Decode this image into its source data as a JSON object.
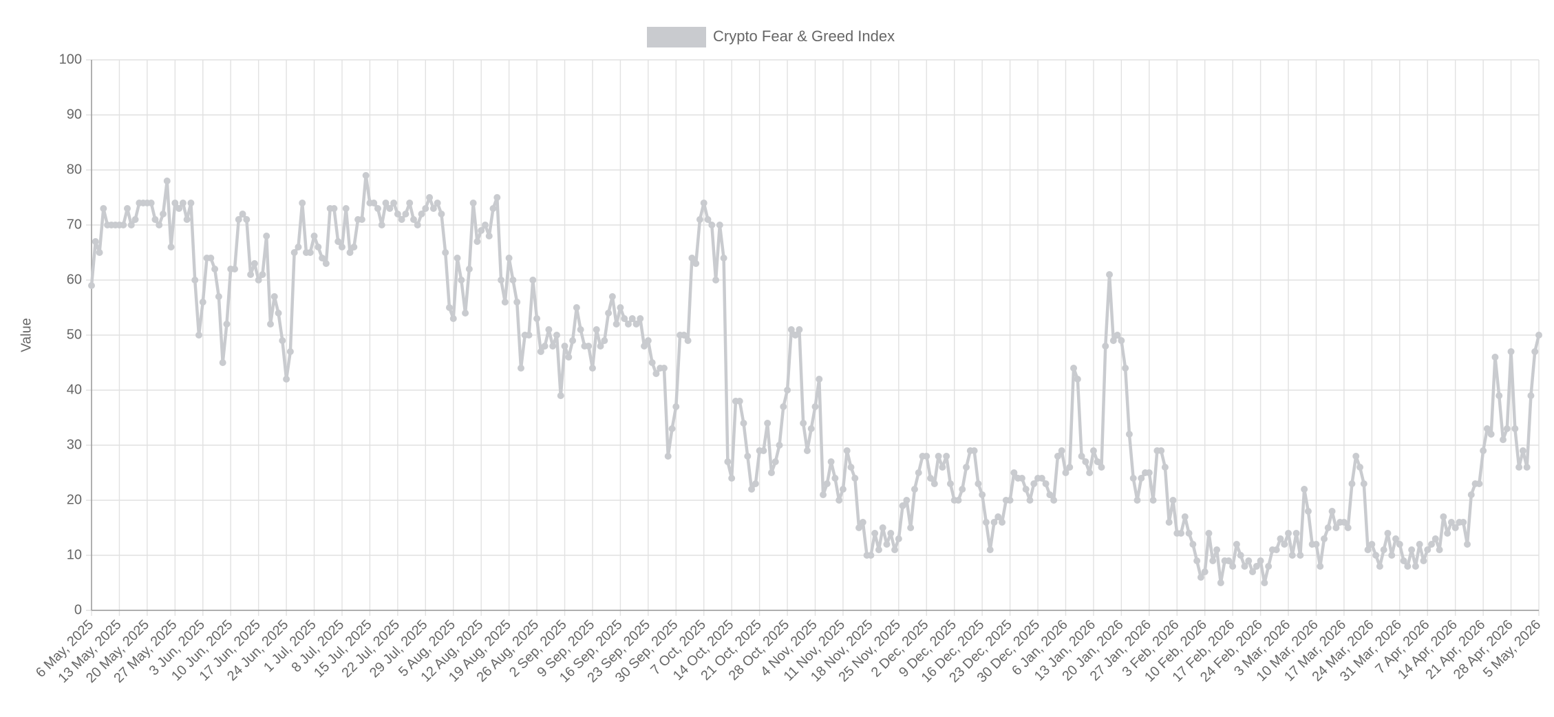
{
  "chart_data": {
    "type": "line",
    "y_label": "Value",
    "legend_position": "top",
    "grid": true,
    "ylim": [
      0,
      100
    ],
    "yticks": [
      0,
      10,
      20,
      30,
      40,
      50,
      60,
      70,
      80,
      90,
      100
    ],
    "categories": [
      "6 May, 2025",
      null,
      null,
      null,
      null,
      null,
      null,
      "13 May, 2025",
      null,
      null,
      null,
      null,
      null,
      null,
      "20 May, 2025",
      null,
      null,
      null,
      null,
      null,
      null,
      "27 May, 2025",
      null,
      null,
      null,
      null,
      null,
      null,
      "3 Jun, 2025",
      null,
      null,
      null,
      null,
      null,
      null,
      "10 Jun, 2025",
      null,
      null,
      null,
      null,
      null,
      null,
      "17 Jun, 2025",
      null,
      null,
      null,
      null,
      null,
      null,
      "24 Jun, 2025",
      null,
      null,
      null,
      null,
      null,
      null,
      "1 Jul, 2025",
      null,
      null,
      null,
      null,
      null,
      null,
      "8 Jul, 2025",
      null,
      null,
      null,
      null,
      null,
      null,
      "15 Jul, 2025",
      null,
      null,
      null,
      null,
      null,
      null,
      "22 Jul, 2025",
      null,
      null,
      null,
      null,
      null,
      null,
      "29 Jul, 2025",
      null,
      null,
      null,
      null,
      null,
      null,
      "5 Aug, 2025",
      null,
      null,
      null,
      null,
      null,
      null,
      "12 Aug, 2025",
      null,
      null,
      null,
      null,
      null,
      null,
      "19 Aug, 2025",
      null,
      null,
      null,
      null,
      null,
      null,
      "26 Aug, 2025",
      null,
      null,
      null,
      null,
      null,
      null,
      "2 Sep, 2025",
      null,
      null,
      null,
      null,
      null,
      null,
      "9 Sep, 2025",
      null,
      null,
      null,
      null,
      null,
      null,
      "16 Sep, 2025",
      null,
      null,
      null,
      null,
      null,
      null,
      "23 Sep, 2025",
      null,
      null,
      null,
      null,
      null,
      null,
      "30 Sep, 2025",
      null,
      null,
      null,
      null,
      null,
      null,
      "7 Oct, 2025",
      null,
      null,
      null,
      null,
      null,
      null,
      "14 Oct, 2025",
      null,
      null,
      null,
      null,
      null,
      null,
      "21 Oct, 2025",
      null,
      null,
      null,
      null,
      null,
      null,
      "28 Oct, 2025",
      null,
      null,
      null,
      null,
      null,
      null,
      "4 Nov, 2025",
      null,
      null,
      null,
      null,
      null,
      null,
      "11 Nov, 2025",
      null,
      null,
      null,
      null,
      null,
      null,
      "18 Nov, 2025",
      null,
      null,
      null,
      null,
      null,
      null,
      "25 Nov, 2025",
      null,
      null,
      null,
      null,
      null,
      null,
      "2 Dec, 2025",
      null,
      null,
      null,
      null,
      null,
      null,
      "9 Dec, 2025",
      null,
      null,
      null,
      null,
      null,
      null,
      "16 Dec, 2025",
      null,
      null,
      null,
      null,
      null,
      null,
      "23 Dec, 2025",
      null,
      null,
      null,
      null,
      null,
      null,
      "30 Dec, 2025",
      null,
      null,
      null,
      null,
      null,
      null,
      "6 Jan, 2026",
      null,
      null,
      null,
      null,
      null,
      null,
      "13 Jan, 2026",
      null,
      null,
      null,
      null,
      null,
      null,
      "20 Jan, 2026",
      null,
      null,
      null,
      null,
      null,
      null,
      "27 Jan, 2026",
      null,
      null,
      null,
      null,
      null,
      null,
      "3 Feb, 2026",
      null,
      null,
      null,
      null,
      null,
      null,
      "10 Feb, 2026",
      null,
      null,
      null,
      null,
      null,
      null,
      "17 Feb, 2026",
      null,
      null,
      null,
      null,
      null,
      null,
      "24 Feb, 2026",
      null,
      null,
      null,
      null,
      null,
      null,
      "3 Mar, 2026",
      null,
      null,
      null,
      null,
      null,
      null,
      "10 Mar, 2026",
      null,
      null,
      null,
      null,
      null,
      null,
      "17 Mar, 2026",
      null,
      null,
      null,
      null,
      null,
      null,
      "24 Mar, 2026",
      null,
      null,
      null,
      null,
      null,
      null,
      "31 Mar, 2026",
      null,
      null,
      null,
      null,
      null,
      null,
      "7 Apr, 2026",
      null,
      null,
      null,
      null,
      null,
      null,
      "14 Apr, 2026",
      null,
      null,
      null,
      null,
      null,
      null,
      "21 Apr, 2026",
      null,
      null,
      null,
      null,
      null,
      null,
      "28 Apr, 2026",
      null,
      null,
      null,
      null,
      null,
      null,
      "5 May, 2026"
    ],
    "series": [
      {
        "name": "Crypto Fear & Greed Index",
        "color": "#c9cbcf",
        "values": [
          59,
          67,
          65,
          73,
          70,
          70,
          70,
          70,
          70,
          73,
          70,
          71,
          74,
          74,
          74,
          74,
          71,
          70,
          72,
          78,
          66,
          74,
          73,
          74,
          71,
          74,
          60,
          50,
          56,
          64,
          64,
          62,
          57,
          45,
          52,
          62,
          62,
          71,
          72,
          71,
          61,
          63,
          60,
          61,
          68,
          52,
          57,
          54,
          49,
          42,
          47,
          65,
          66,
          74,
          65,
          65,
          68,
          66,
          64,
          63,
          73,
          73,
          67,
          66,
          73,
          65,
          66,
          71,
          71,
          79,
          74,
          74,
          73,
          70,
          74,
          73,
          74,
          72,
          71,
          72,
          74,
          71,
          70,
          72,
          73,
          75,
          73,
          74,
          72,
          65,
          55,
          53,
          64,
          60,
          54,
          62,
          74,
          67,
          69,
          70,
          68,
          73,
          75,
          60,
          56,
          64,
          60,
          56,
          44,
          50,
          50,
          60,
          53,
          47,
          48,
          51,
          48,
          50,
          39,
          48,
          46,
          49,
          55,
          51,
          48,
          48,
          44,
          51,
          48,
          49,
          54,
          57,
          52,
          55,
          53,
          52,
          53,
          52,
          53,
          48,
          49,
          45,
          43,
          44,
          44,
          28,
          33,
          37,
          50,
          50,
          49,
          64,
          63,
          71,
          74,
          71,
          70,
          60,
          70,
          64,
          27,
          24,
          38,
          38,
          34,
          28,
          22,
          23,
          29,
          29,
          34,
          25,
          27,
          30,
          37,
          40,
          51,
          50,
          51,
          34,
          29,
          33,
          37,
          42,
          21,
          23,
          27,
          24,
          20,
          22,
          29,
          26,
          24,
          15,
          16,
          10,
          10,
          14,
          11,
          15,
          12,
          14,
          11,
          13,
          19,
          20,
          15,
          22,
          25,
          28,
          28,
          24,
          23,
          28,
          26,
          28,
          23,
          20,
          20,
          22,
          26,
          29,
          29,
          23,
          21,
          16,
          11,
          16,
          17,
          16,
          20,
          20,
          25,
          24,
          24,
          22,
          20,
          23,
          24,
          24,
          23,
          21,
          20,
          28,
          29,
          25,
          26,
          44,
          42,
          28,
          27,
          25,
          29,
          27,
          26,
          48,
          61,
          49,
          50,
          49,
          44,
          32,
          24,
          20,
          24,
          25,
          25,
          20,
          29,
          29,
          26,
          16,
          20,
          14,
          14,
          17,
          14,
          12,
          9,
          6,
          7,
          14,
          9,
          11,
          5,
          9,
          9,
          8,
          12,
          10,
          8,
          9,
          7,
          8,
          9,
          5,
          8,
          11,
          11,
          13,
          12,
          14,
          10,
          14,
          10,
          22,
          18,
          12,
          12,
          8,
          13,
          15,
          18,
          15,
          16,
          16,
          15,
          23,
          28,
          26,
          23,
          11,
          12,
          10,
          8,
          11,
          14,
          10,
          13,
          12,
          9,
          8,
          11,
          8,
          12,
          9,
          11,
          12,
          13,
          11,
          17,
          14,
          16,
          15,
          16,
          16,
          12,
          21,
          23,
          23,
          29,
          33,
          32,
          46,
          39,
          31,
          33,
          47,
          33,
          26,
          29,
          26,
          39,
          47,
          50
        ]
      }
    ]
  }
}
